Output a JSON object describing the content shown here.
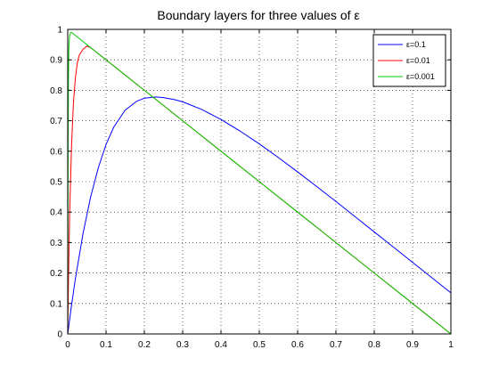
{
  "chart_data": {
    "type": "line",
    "title": "Boundary layers for three values of ε",
    "xlabel": "",
    "ylabel": "",
    "xlim": [
      0,
      1
    ],
    "ylim": [
      0,
      1
    ],
    "x_ticks": [
      "0",
      "0.1",
      "0.2",
      "0.3",
      "0.4",
      "0.5",
      "0.6",
      "0.7",
      "0.8",
      "0.9",
      "1"
    ],
    "y_ticks": [
      "0",
      "0.1",
      "0.2",
      "0.3",
      "0.4",
      "0.5",
      "0.6",
      "0.7",
      "0.8",
      "0.9",
      "1"
    ],
    "grid": true,
    "legend_position": "top-right",
    "series": [
      {
        "name": "ε=0.1",
        "color": "#0000ff",
        "x": [
          0,
          0.01,
          0.02,
          0.04,
          0.06,
          0.08,
          0.1,
          0.12,
          0.15,
          0.18,
          0.2,
          0.23,
          0.25,
          0.28,
          0.3,
          0.35,
          0.4,
          0.45,
          0.5,
          0.55,
          0.6,
          0.65,
          0.7,
          0.75,
          0.8,
          0.85,
          0.9,
          0.95,
          1.0
        ],
        "y": [
          0,
          0.095,
          0.181,
          0.33,
          0.451,
          0.546,
          0.622,
          0.679,
          0.735,
          0.764,
          0.774,
          0.778,
          0.776,
          0.769,
          0.762,
          0.737,
          0.704,
          0.666,
          0.624,
          0.579,
          0.532,
          0.484,
          0.435,
          0.385,
          0.335,
          0.285,
          0.235,
          0.185,
          0.135
        ]
      },
      {
        "name": "ε=0.01",
        "color": "#ff0000",
        "x": [
          0,
          0.002,
          0.005,
          0.01,
          0.015,
          0.02,
          0.025,
          0.03,
          0.04,
          0.05,
          0.06,
          0.08,
          0.1,
          0.15,
          0.2,
          0.3,
          0.4,
          0.5,
          0.6,
          0.7,
          0.8,
          0.9,
          1.0
        ],
        "y": [
          0,
          0.18,
          0.39,
          0.62,
          0.76,
          0.84,
          0.89,
          0.915,
          0.935,
          0.945,
          0.94,
          0.92,
          0.9,
          0.85,
          0.8,
          0.7,
          0.6,
          0.5,
          0.4,
          0.3,
          0.2,
          0.1,
          0.0
        ]
      },
      {
        "name": "ε=0.001",
        "color": "#00cc00",
        "x": [
          0,
          0.001,
          0.002,
          0.003,
          0.005,
          0.008,
          0.01,
          0.02,
          0.05,
          0.1,
          0.2,
          0.3,
          0.4,
          0.5,
          0.6,
          0.7,
          0.8,
          0.9,
          1.0
        ],
        "y": [
          0,
          0.63,
          0.86,
          0.94,
          0.98,
          0.99,
          0.99,
          0.98,
          0.95,
          0.9,
          0.8,
          0.7,
          0.6,
          0.5,
          0.4,
          0.3,
          0.2,
          0.1,
          0.0
        ]
      }
    ]
  }
}
